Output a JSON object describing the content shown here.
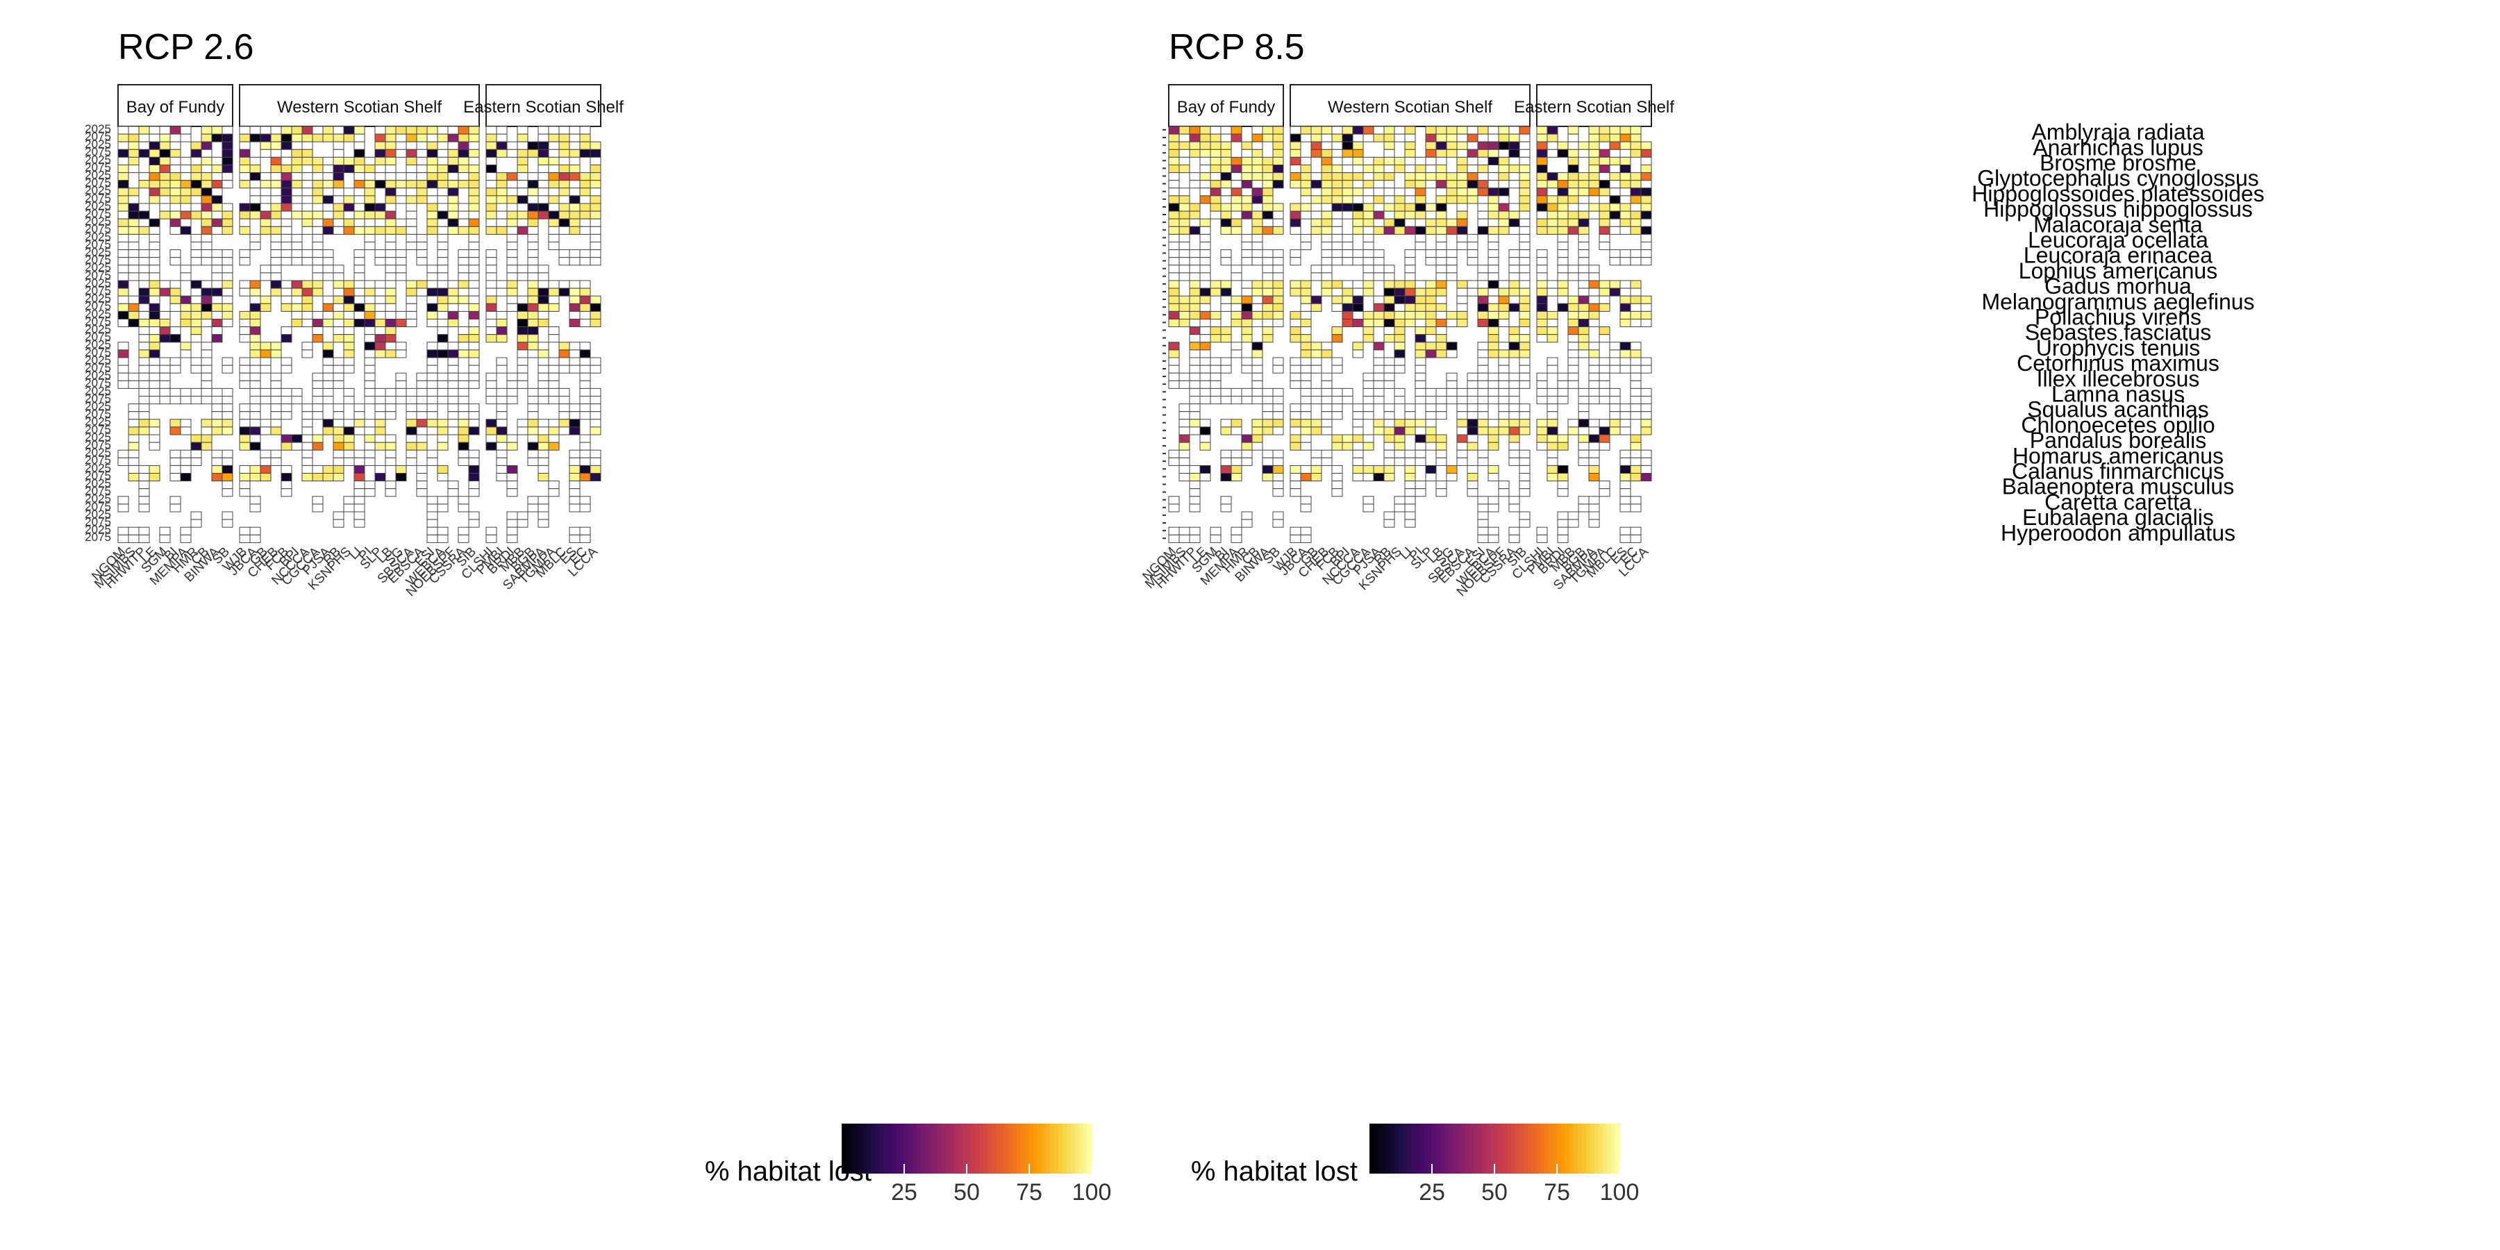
{
  "chart_data": {
    "type": "heatmap",
    "colorbar": {
      "title": "% habitat lost",
      "ticks": [
        "25",
        "50",
        "75",
        "100"
      ],
      "stops": [
        "#000004",
        "#1b0c41",
        "#4a0c6b",
        "#781c6d",
        "#a52c60",
        "#cf4446",
        "#ed6925",
        "#fb9b06",
        "#f7d13d",
        "#fcffa4"
      ],
      "low_text_color": "#000000",
      "range": [
        0,
        100
      ]
    },
    "colors": {
      "border": "#333333",
      "pale_cell": "#f7f1a3"
    },
    "row_years": [
      "2025",
      "2075"
    ],
    "species": [
      "Amblyraja radiata",
      "Anarhichas lupus",
      "Brosme brosme",
      "Glyptocephalus cynoglossus",
      "Hippoglossoides platessoides",
      "Hippoglossus hippoglossus",
      "Malacoraja senta",
      "Leucoraja ocellata",
      "Leucoraja erinacea",
      "Lophius americanus",
      "Gadus morhua",
      "Melanogrammus aeglefinus",
      "Pollachius virens",
      "Sebastes fasciatus",
      "Urophycis tenuis",
      "Cetorhinus maximus",
      "Illex illecebrosus",
      "Lamna nasus",
      "Squalus acanthias",
      "Chionoecetes opilio",
      "Pandalus borealis",
      "Homarus americanus",
      "Calanus finmarchicus",
      "Balaenoptera musculus",
      "Caretta caretta",
      "Eubalaena glacialis",
      "Hyperoodon ampullatus"
    ],
    "regions": [
      {
        "name": "Bay of Fundy",
        "sites": [
          "NGOM",
          "MSIMBS",
          "HHWITP",
          "LE",
          "SGM",
          "BI",
          "MEMPA",
          "HMR",
          "CB",
          "BINWA",
          "SB"
        ]
      },
      {
        "name": "Western Scotian Shelf",
        "sites": [
          "WJB",
          "JBCA",
          "GB",
          "CHEB",
          "FCB",
          "BPI",
          "NCCCA",
          "CGCCA",
          "PJSA",
          "RB",
          "KSNPHS",
          "LI",
          "PI",
          "SLP",
          "LB",
          "SG",
          "SBSCA",
          "EBSCA",
          "ESI",
          "WEBCA",
          "NOEBSPF",
          "CSSRA",
          "SIB"
        ]
      },
      {
        "name": "Eastern Scotian Shelf",
        "sites": [
          "CLSHI",
          "PMBI",
          "BRDI",
          "MBB",
          "BGB",
          "SABMPA",
          "TGMPA",
          "MBLC",
          "ES",
          "EC",
          "LCCA"
        ]
      }
    ],
    "panels": [
      {
        "title": "RCP 2.6",
        "seed": 11,
        "dark_boost": 0.12
      },
      {
        "title": "RCP 8.5",
        "seed": 29,
        "dark_boost": 0.03
      }
    ]
  }
}
